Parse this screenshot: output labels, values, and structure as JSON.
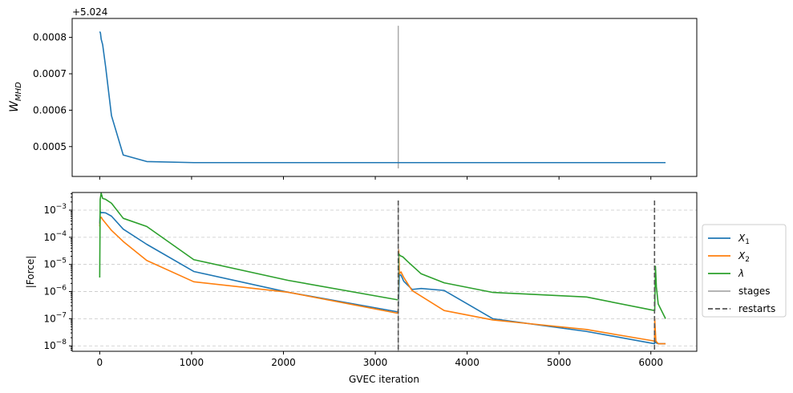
{
  "chart_data": [
    {
      "type": "line",
      "ylabel_base": "W",
      "ylabel_sub": "MHD",
      "offset_text": "+5.024",
      "xlim": [
        -300,
        6500
      ],
      "ylim": [
        0.000418,
        0.000852
      ],
      "y_ticks": [
        0.0005,
        0.0006,
        0.0007,
        0.0008
      ],
      "y_tick_labels": [
        "0.0005",
        "0.0006",
        "0.0007",
        "0.0008"
      ],
      "grid": false,
      "series": [
        {
          "color": "#1f77b4",
          "x": [
            0,
            8,
            16,
            32,
            64,
            128,
            256,
            512,
            1024,
            2048,
            3000,
            3250,
            3500,
            4000,
            5000,
            6000,
            6160
          ],
          "y": [
            0.000816,
            0.000812,
            0.000795,
            0.00078,
            0.00072,
            0.000585,
            0.000477,
            0.000459,
            0.000456,
            0.000456,
            0.000456,
            0.000456,
            0.000456,
            0.000456,
            0.000456,
            0.000456,
            0.000456
          ]
        }
      ],
      "stages_line": {
        "x": 3250,
        "y_range": [
          0.00044,
          0.000832
        ],
        "color": "#aaaaaa"
      }
    },
    {
      "type": "line",
      "log_scale_y": true,
      "ylabel": "|Force|",
      "xlabel": "GVEC iteration",
      "xlim": [
        -300,
        6500
      ],
      "ylim_exp": [
        -8.2,
        -2.35
      ],
      "y_tick_exponents": [
        -8,
        -7,
        -6,
        -5,
        -4,
        -3
      ],
      "y_tick_label_base": "10",
      "x_ticks": [
        0,
        1000,
        2000,
        3000,
        4000,
        5000,
        6000
      ],
      "x_tick_labels": [
        "0",
        "1000",
        "2000",
        "3000",
        "4000",
        "5000",
        "6000"
      ],
      "grid": true,
      "legend_position": "outside-right",
      "legend": [
        {
          "label_base": "X",
          "label_sub": "1",
          "color": "#1f77b4",
          "style": "solid"
        },
        {
          "label_base": "X",
          "label_sub": "2",
          "color": "#ff7f0e",
          "style": "solid"
        },
        {
          "label_base": "λ",
          "label_sub": "",
          "color": "#2ca02c",
          "style": "solid"
        },
        {
          "label_base": "stages",
          "label_sub": "",
          "color": "#aaaaaa",
          "style": "solid"
        },
        {
          "label_base": "restarts",
          "label_sub": "",
          "color": "#555555",
          "style": "dashed"
        }
      ],
      "series": [
        {
          "color": "#1f77b4",
          "x": [
            0,
            5,
            16,
            32,
            64,
            128,
            256,
            512,
            1024,
            2048,
            3240,
            3250,
            3262,
            3280,
            3310,
            3400,
            3500,
            3750,
            4280,
            5300,
            6040,
            6042,
            6055,
            6080,
            6160
          ],
          "y": [
            0.00032,
            0.0009,
            0.0008,
            0.00081,
            0.00079,
            0.0006,
            0.0002,
            5.5e-05,
            5.5e-06,
            9.5e-07,
            1.8e-07,
            2e-07,
            4.2e-06,
            4e-06,
            2.4e-06,
            1.2e-06,
            1.3e-06,
            1.1e-06,
            1e-07,
            3.4e-08,
            1.2e-08,
            2e-08,
            1.3e-08,
            1.2e-08,
            1.2e-08
          ]
        },
        {
          "color": "#ff7f0e",
          "x": [
            0,
            5,
            16,
            32,
            64,
            128,
            256,
            512,
            1024,
            2048,
            3240,
            3250,
            3255,
            3262,
            3280,
            3310,
            3400,
            3750,
            4280,
            5300,
            6040,
            6042,
            6055,
            6080,
            6160
          ],
          "y": [
            0.00025,
            0.0005,
            0.00055,
            0.00045,
            0.00033,
            0.00018,
            7e-05,
            1.4e-05,
            2.3e-06,
            9.5e-07,
            1.6e-07,
            2e-07,
            3.5e-05,
            4.5e-06,
            5.3e-06,
            3.3e-06,
            1.1e-06,
            2e-07,
            9e-08,
            4e-08,
            1.5e-08,
            1e-07,
            1.5e-08,
            1.2e-08,
            1.2e-08
          ]
        },
        {
          "color": "#2ca02c",
          "x": [
            0,
            5,
            16,
            32,
            64,
            128,
            256,
            512,
            1024,
            2048,
            3240,
            3250,
            3255,
            3270,
            3300,
            3350,
            3500,
            3750,
            4280,
            5300,
            6040,
            6042,
            6050,
            6060,
            6080,
            6160
          ],
          "y": [
            3.3e-06,
            0.0025,
            0.0042,
            0.0027,
            0.0025,
            0.0018,
            0.0005,
            0.00025,
            1.5e-05,
            2.6e-06,
            5e-07,
            5e-07,
            2.5e-05,
            2.1e-05,
            1.9e-05,
            1.3e-05,
            4.5e-06,
            2.1e-06,
            9.3e-07,
            6.3e-07,
            2e-07,
            2e-07,
            8.5e-06,
            1.5e-06,
            3.5e-07,
            1e-07
          ]
        }
      ],
      "stages_line": {
        "x": 3250,
        "color": "#aaaaaa"
      },
      "restart_lines": [
        {
          "x": 3250,
          "color": "#555555"
        },
        {
          "x": 6040,
          "color": "#555555"
        }
      ]
    }
  ]
}
